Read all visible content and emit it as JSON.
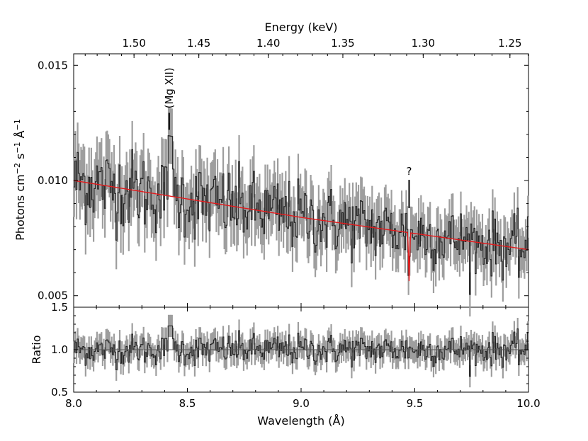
{
  "chart_data": [
    {
      "type": "line",
      "panel": "spectrum",
      "xlabel": "Wavelength (Å)",
      "ylabel_main": "Photons cm",
      "ylabel_units": [
        "−2",
        " s",
        "−1",
        " Å",
        "−1"
      ],
      "top_axis_title": "Energy (keV)",
      "xlim": [
        8.0,
        10.0
      ],
      "ylim": [
        0.0045,
        0.0155
      ],
      "y_ticks": [
        0.005,
        0.01,
        0.015
      ],
      "y_tick_labels": [
        "0.005",
        "0.010",
        "0.015"
      ],
      "energy_ticks": [
        1.5,
        1.45,
        1.4,
        1.35,
        1.3,
        1.25
      ],
      "energy_tick_labels": [
        "1.50",
        "1.45",
        "1.40",
        "1.35",
        "1.30",
        "1.25"
      ],
      "series": [
        {
          "name": "data",
          "description": "binned spectrum with grey error bars, noisy around model"
        },
        {
          "name": "model",
          "color": "#e41a1c",
          "continuum": [
            [
              8.0,
              0.01
            ],
            [
              9.0,
              0.0084
            ],
            [
              10.0,
              0.007
            ]
          ],
          "absorption_line": {
            "center": 9.475,
            "depth": 0.0021,
            "width": 0.006
          }
        }
      ],
      "annotations": [
        {
          "text": "(Mg XII)",
          "x": 8.42,
          "y": 0.0122,
          "orientation": "vertical"
        },
        {
          "text": "?",
          "x": 9.475,
          "y": 0.0088
        }
      ]
    },
    {
      "type": "line",
      "panel": "ratio",
      "xlabel": "Wavelength (Å)",
      "ylabel": "Ratio",
      "xlim": [
        8.0,
        10.0
      ],
      "ylim": [
        0.5,
        1.5
      ],
      "x_ticks": [
        8.0,
        8.5,
        9.0,
        9.5,
        10.0
      ],
      "x_tick_labels": [
        "8.0",
        "8.5",
        "9.0",
        "9.5",
        "10.0"
      ],
      "y_ticks": [
        0.5,
        1.0,
        1.5
      ],
      "y_tick_labels": [
        "0.5",
        "1.0",
        "1.5"
      ],
      "reference_line": 1.0,
      "series": [
        {
          "name": "data/model ratio",
          "description": "noisy ratio around 1.0 with error bars"
        }
      ]
    }
  ]
}
